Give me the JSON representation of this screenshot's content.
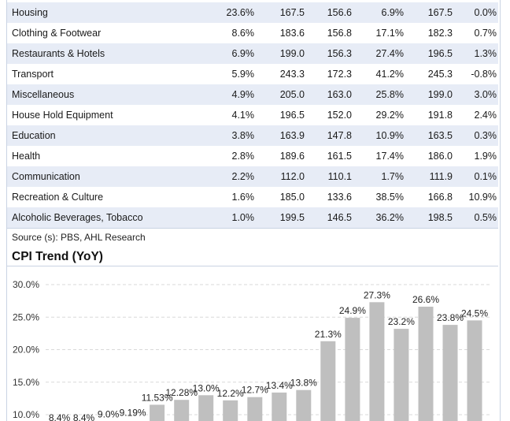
{
  "table": {
    "rows": [
      {
        "name": "Housing",
        "c1": "23.6%",
        "c2": "167.5",
        "c3": "156.6",
        "c4": "6.9%",
        "c5": "167.5",
        "c6": "0.0%"
      },
      {
        "name": "Clothing & Footwear",
        "c1": "8.6%",
        "c2": "183.6",
        "c3": "156.8",
        "c4": "17.1%",
        "c5": "182.3",
        "c6": "0.7%"
      },
      {
        "name": "Restaurants & Hotels",
        "c1": "6.9%",
        "c2": "199.0",
        "c3": "156.3",
        "c4": "27.4%",
        "c5": "196.5",
        "c6": "1.3%"
      },
      {
        "name": "Transport",
        "c1": "5.9%",
        "c2": "243.3",
        "c3": "172.3",
        "c4": "41.2%",
        "c5": "245.3",
        "c6": "-0.8%"
      },
      {
        "name": "Miscellaneous",
        "c1": "4.9%",
        "c2": "205.0",
        "c3": "163.0",
        "c4": "25.8%",
        "c5": "199.0",
        "c6": "3.0%"
      },
      {
        "name": "House Hold Equipment",
        "c1": "4.1%",
        "c2": "196.5",
        "c3": "152.0",
        "c4": "29.2%",
        "c5": "191.8",
        "c6": "2.4%"
      },
      {
        "name": "Education",
        "c1": "3.8%",
        "c2": "163.9",
        "c3": "147.8",
        "c4": "10.9%",
        "c5": "163.5",
        "c6": "0.3%"
      },
      {
        "name": "Health",
        "c1": "2.8%",
        "c2": "189.6",
        "c3": "161.5",
        "c4": "17.4%",
        "c5": "186.0",
        "c6": "1.9%"
      },
      {
        "name": "Communication",
        "c1": "2.2%",
        "c2": "112.0",
        "c3": "110.1",
        "c4": "1.7%",
        "c5": "111.9",
        "c6": "0.1%"
      },
      {
        "name": "Recreation & Culture",
        "c1": "1.6%",
        "c2": "185.0",
        "c3": "133.6",
        "c4": "38.5%",
        "c5": "166.8",
        "c6": "10.9%"
      },
      {
        "name": "Alcoholic Beverages, Tobacco",
        "c1": "1.0%",
        "c2": "199.5",
        "c3": "146.5",
        "c4": "36.2%",
        "c5": "198.5",
        "c6": "0.5%"
      }
    ]
  },
  "source_text": "Source (s): PBS, AHL Research",
  "chart_data": {
    "type": "bar",
    "title": "CPI Trend (YoY)",
    "xlabel": "",
    "ylabel": "",
    "y_tick_labels": [
      "10.0%",
      "15.0%",
      "20.0%",
      "25.0%",
      "30.0%"
    ],
    "y_ticks": [
      10,
      15,
      20,
      25,
      30
    ],
    "ylim": [
      10,
      30
    ],
    "grid": true,
    "bar_color": "#bfbfbf",
    "values": [
      8.4,
      8.4,
      9.0,
      9.19,
      11.53,
      12.28,
      13.0,
      12.2,
      12.7,
      13.4,
      13.8,
      21.3,
      24.9,
      27.3,
      23.2,
      26.6,
      23.8,
      24.5
    ],
    "labels": [
      "8.4%",
      "8.4%",
      "9.0%",
      "9.19%",
      "11.53%",
      "12.28%",
      "13.0%",
      "12.2%",
      "12.7%",
      "13.4%",
      "13.8%",
      "21.3%",
      "24.9%",
      "27.3%",
      "23.2%",
      "26.6%",
      "23.8%",
      "24.5%"
    ]
  }
}
